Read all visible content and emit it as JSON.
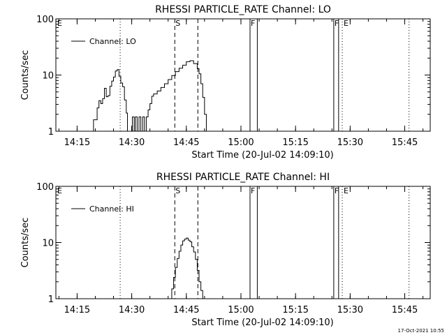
{
  "footer": {
    "timestamp": "17-Oct-2021 10:55"
  },
  "chart_data": [
    {
      "type": "line",
      "title": "RHESSI PARTICLE_RATE Channel: LO",
      "xlabel": "Start Time (20-Jul-02 14:09:10)",
      "ylabel": "Counts/sec",
      "yscale": "log",
      "ylim": [
        1,
        100
      ],
      "xlim": [
        "14:09:10",
        "15:52:00"
      ],
      "yticks": [
        "1",
        "10",
        "100"
      ],
      "xticks": [
        "14:15",
        "14:30",
        "14:45",
        "15:00",
        "15:15",
        "15:30",
        "15:45"
      ],
      "legend": {
        "placement": "top-left",
        "entries": [
          "Channel: LO"
        ]
      },
      "series": [
        {
          "name": "Channel: LO",
          "x": [
            "14:18:30",
            "14:19:30",
            "14:20:30",
            "14:21:00",
            "14:21:30",
            "14:22:00",
            "14:22:30",
            "14:23:00",
            "14:23:30",
            "14:24:00",
            "14:24:30",
            "14:25:00",
            "14:25:30",
            "14:26:00",
            "14:26:30",
            "14:27:00",
            "14:27:30",
            "14:28:00",
            "14:28:30",
            "14:28:50",
            "14:30:00",
            "14:30:10",
            "14:30:40",
            "14:31:00",
            "14:31:30",
            "14:32:00",
            "14:32:30",
            "14:33:00",
            "14:33:30",
            "14:34:00",
            "14:34:30",
            "14:35:00",
            "14:35:30",
            "14:36:00",
            "14:37:00",
            "14:38:00",
            "14:39:00",
            "14:40:00",
            "14:41:00",
            "14:42:00",
            "14:43:00",
            "14:44:00",
            "14:45:00",
            "14:46:00",
            "14:47:00",
            "14:48:00",
            "14:48:30",
            "14:49:00",
            "14:49:30",
            "14:50:00",
            "14:50:30"
          ],
          "values": [
            1.0,
            1.6,
            2.6,
            3.5,
            3.1,
            3.8,
            5.8,
            4.1,
            4.3,
            6.3,
            7.8,
            9.2,
            11.8,
            12.5,
            9.5,
            7.2,
            6.2,
            3.6,
            2.1,
            1.0,
            1.0,
            1.8,
            1.0,
            1.8,
            1.0,
            1.8,
            1.0,
            1.8,
            1.0,
            1.8,
            2.4,
            3.1,
            4.2,
            4.6,
            5.2,
            6.0,
            7.0,
            8.3,
            9.8,
            11.5,
            13.2,
            15.0,
            17.3,
            18.0,
            16.0,
            13.0,
            10.5,
            7.0,
            4.0,
            2.0,
            1.0
          ]
        }
      ],
      "annotations": [
        "E",
        "S",
        "F",
        "F",
        "E"
      ]
    },
    {
      "type": "line",
      "title": "RHESSI PARTICLE_RATE Channel: HI",
      "xlabel": "Start Time (20-Jul-02 14:09:10)",
      "ylabel": "Counts/sec",
      "yscale": "log",
      "ylim": [
        1,
        100
      ],
      "xlim": [
        "14:09:10",
        "15:52:00"
      ],
      "yticks": [
        "1",
        "10",
        "100"
      ],
      "xticks": [
        "14:15",
        "14:30",
        "14:45",
        "15:00",
        "15:15",
        "15:30",
        "15:45"
      ],
      "legend": {
        "placement": "top-left",
        "entries": [
          "Channel: HI"
        ]
      },
      "series": [
        {
          "name": "Channel: HI",
          "x": [
            "14:40:30",
            "14:41:00",
            "14:41:30",
            "14:42:00",
            "14:42:30",
            "14:43:00",
            "14:43:30",
            "14:44:00",
            "14:44:30",
            "14:45:00",
            "14:45:30",
            "14:46:00",
            "14:46:30",
            "14:47:00",
            "14:47:30",
            "14:48:00",
            "14:48:30",
            "14:49:00",
            "14:49:30"
          ],
          "values": [
            1.0,
            1.5,
            2.4,
            3.6,
            5.2,
            7.0,
            9.0,
            10.7,
            11.5,
            12.0,
            11.0,
            10.3,
            8.4,
            6.8,
            5.0,
            3.2,
            2.0,
            1.4,
            1.0
          ]
        }
      ],
      "annotations": [
        "E",
        "S",
        "F",
        "F",
        "E"
      ]
    }
  ]
}
